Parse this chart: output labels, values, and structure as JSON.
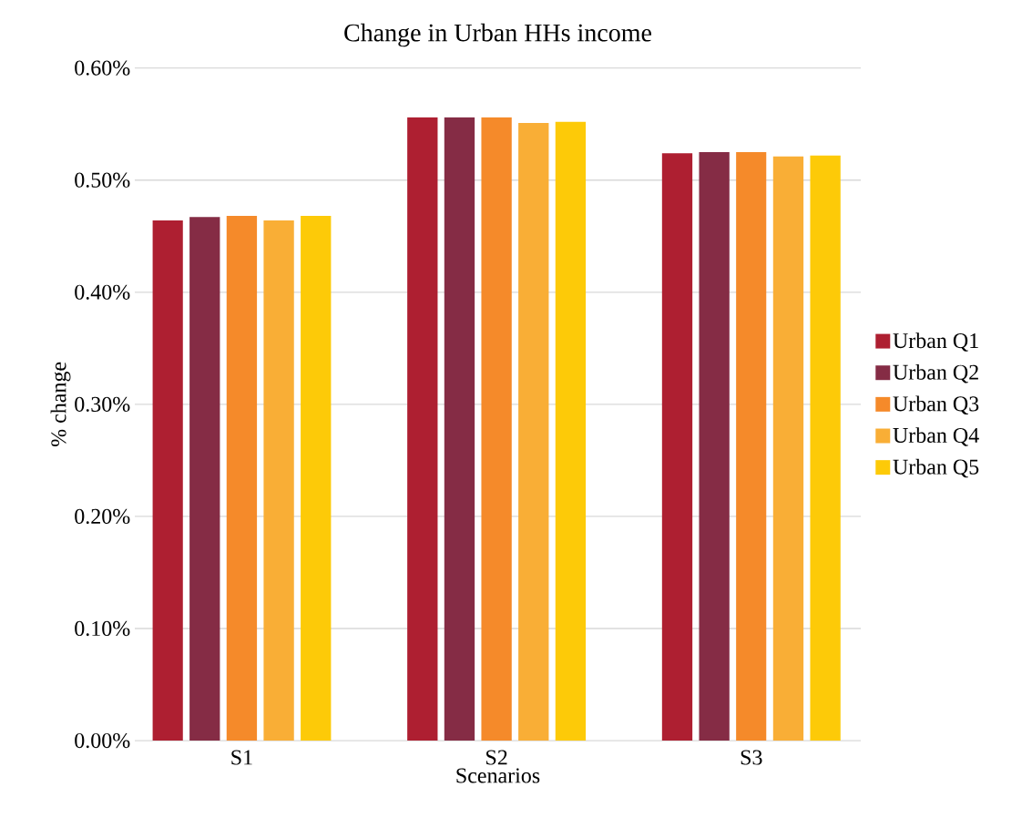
{
  "chart_data": {
    "type": "bar",
    "title": "Change in Urban HHs income",
    "xlabel": "Scenarios",
    "ylabel": "% change",
    "categories": [
      "S1",
      "S2",
      "S3"
    ],
    "series": [
      {
        "name": "Urban Q1",
        "color": "#ae1f31",
        "values": [
          0.464,
          0.556,
          0.524
        ]
      },
      {
        "name": "Urban Q2",
        "color": "#852c45",
        "values": [
          0.467,
          0.556,
          0.525
        ]
      },
      {
        "name": "Urban Q3",
        "color": "#f58a2a",
        "values": [
          0.468,
          0.556,
          0.525
        ]
      },
      {
        "name": "Urban Q4",
        "color": "#f9ae36",
        "values": [
          0.464,
          0.551,
          0.521
        ]
      },
      {
        "name": "Urban Q5",
        "color": "#fdca08",
        "values": [
          0.468,
          0.552,
          0.522
        ]
      }
    ],
    "ylim": [
      0,
      0.6
    ],
    "yticks": [
      {
        "value": 0,
        "label": "0.00%"
      },
      {
        "value": 0.1,
        "label": "0.10%"
      },
      {
        "value": 0.2,
        "label": "0.20%"
      },
      {
        "value": 0.3,
        "label": "0.30%"
      },
      {
        "value": 0.4,
        "label": "0.40%"
      },
      {
        "value": 0.5,
        "label": "0.50%"
      },
      {
        "value": 0.6,
        "label": "0.60%"
      }
    ],
    "grid": "y",
    "legend": "right"
  }
}
